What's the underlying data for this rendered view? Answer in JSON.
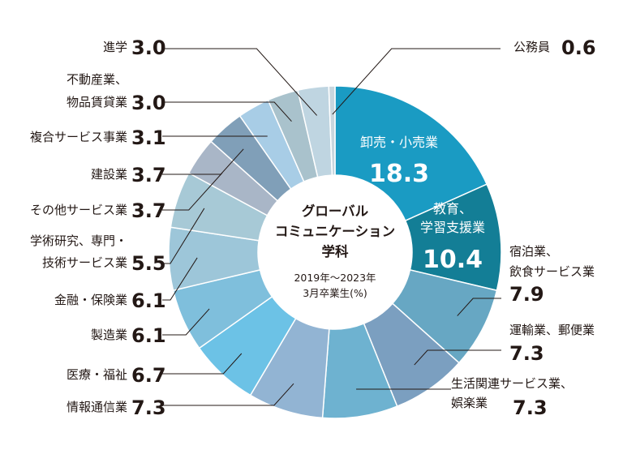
{
  "chart_data": {
    "type": "pie",
    "title": [
      "グローバル",
      "コミュニケーション",
      "学科"
    ],
    "subtitle": [
      "2019年〜2023年",
      "3月卒業生(%)"
    ],
    "slices": [
      {
        "name": [
          "卸売・小売業"
        ],
        "value": "18.3",
        "color": "#1a9bc3"
      },
      {
        "name": [
          "教育、",
          "学習支援業"
        ],
        "value": "10.4",
        "color": "#137e96"
      },
      {
        "name": [
          "宿泊業、",
          "飲食サービス業"
        ],
        "value": "7.9",
        "color": "#67a7c3"
      },
      {
        "name": [
          "運輸業、郵便業"
        ],
        "value": "7.3",
        "color": "#7b9fc0"
      },
      {
        "name": [
          "生活関連サービス業、",
          "娯楽業"
        ],
        "value": "7.3",
        "color": "#6eb2d0"
      },
      {
        "name": [
          "情報通信業"
        ],
        "value": "7.3",
        "color": "#92b4d3"
      },
      {
        "name": [
          "医療・福祉"
        ],
        "value": "6.7",
        "color": "#6cc2e6"
      },
      {
        "name": [
          "製造業"
        ],
        "value": "6.1",
        "color": "#7fbfdc"
      },
      {
        "name": [
          "金融・保険業"
        ],
        "value": "6.1",
        "color": "#9dc6d9"
      },
      {
        "name": [
          "学術研究、専門・",
          "技術サービス業"
        ],
        "value": "5.5",
        "color": "#a7c9d6"
      },
      {
        "name": [
          "その他サービス業"
        ],
        "value": "3.7",
        "color": "#a9b6c7"
      },
      {
        "name": [
          "建設業"
        ],
        "value": "3.7",
        "color": "#809fb8"
      },
      {
        "name": [
          "複合サービス事業"
        ],
        "value": "3.1",
        "color": "#a8cde6"
      },
      {
        "name": [
          "不動産業、",
          "物品賃貸業"
        ],
        "value": "3.0",
        "color": "#a9c2cc"
      },
      {
        "name": [
          "進学"
        ],
        "value": "3.0",
        "color": "#bfd5e1"
      },
      {
        "name": [
          "公務員"
        ],
        "value": "0.6",
        "color": "#c8d6de"
      }
    ]
  }
}
